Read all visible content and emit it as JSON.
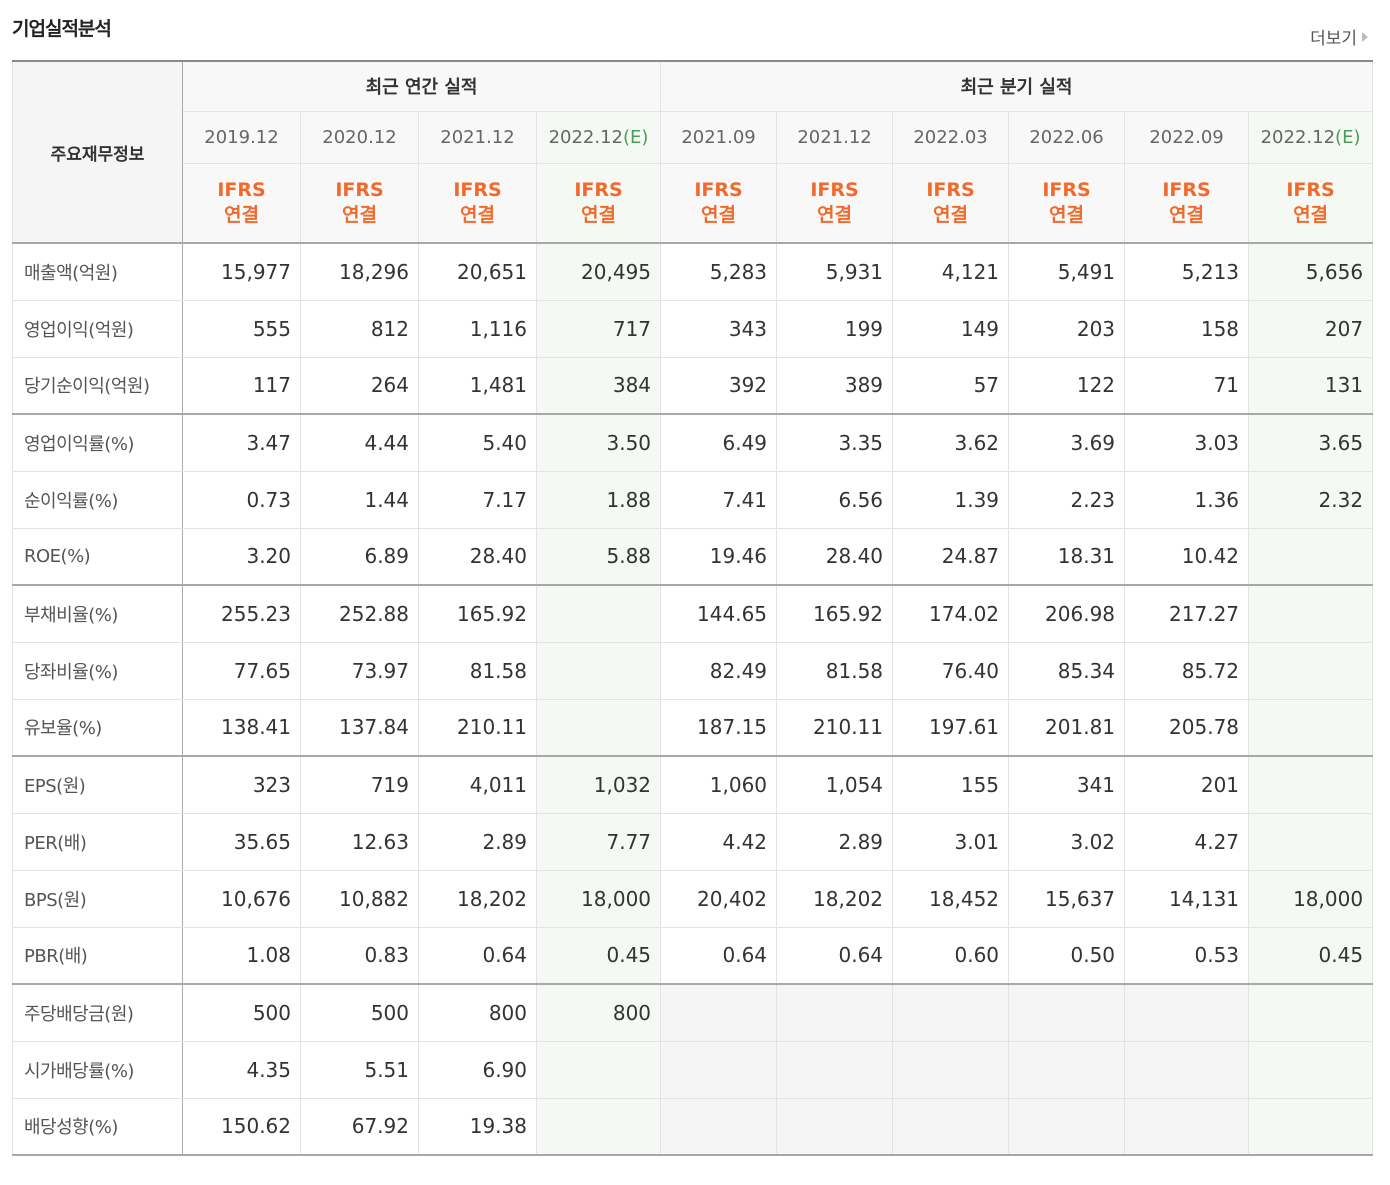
{
  "header": {
    "title": "기업실적분석",
    "more": "더보기"
  },
  "table": {
    "label_header": "주요재무정보",
    "groups": [
      {
        "label": "최근 연간 실적",
        "count": 4
      },
      {
        "label": "최근 분기 실적",
        "count": 6
      }
    ],
    "periods": [
      {
        "date": "2019.12"
      },
      {
        "date": "2020.12"
      },
      {
        "date": "2021.12"
      },
      {
        "date": "2022.12",
        "mark": "(E)"
      },
      {
        "date": "2021.09"
      },
      {
        "date": "2021.12"
      },
      {
        "date": "2022.03"
      },
      {
        "date": "2022.06"
      },
      {
        "date": "2022.09"
      },
      {
        "date": "2022.12",
        "mark": "(E)"
      }
    ],
    "basis": [
      {
        "standard": "IFRS",
        "scope": "연결"
      },
      {
        "standard": "IFRS",
        "scope": "연결"
      },
      {
        "standard": "IFRS",
        "scope": "연결"
      },
      {
        "standard": "IFRS",
        "scope": "연결"
      },
      {
        "standard": "IFRS",
        "scope": "연결"
      },
      {
        "standard": "IFRS",
        "scope": "연결"
      },
      {
        "standard": "IFRS",
        "scope": "연결"
      },
      {
        "standard": "IFRS",
        "scope": "연결"
      },
      {
        "standard": "IFRS",
        "scope": "연결"
      },
      {
        "standard": "IFRS",
        "scope": "연결"
      }
    ],
    "sections": [
      {
        "rows": [
          {
            "label": "매출액(억원)",
            "values": [
              "15,977",
              "18,296",
              "20,651",
              "20,495",
              "5,283",
              "5,931",
              "4,121",
              "5,491",
              "5,213",
              "5,656"
            ]
          },
          {
            "label": "영업이익(억원)",
            "values": [
              "555",
              "812",
              "1,116",
              "717",
              "343",
              "199",
              "149",
              "203",
              "158",
              "207"
            ]
          },
          {
            "label": "당기순이익(억원)",
            "values": [
              "117",
              "264",
              "1,481",
              "384",
              "392",
              "389",
              "57",
              "122",
              "71",
              "131"
            ]
          }
        ]
      },
      {
        "rows": [
          {
            "label": "영업이익률(%)",
            "values": [
              "3.47",
              "4.44",
              "5.40",
              "3.50",
              "6.49",
              "3.35",
              "3.62",
              "3.69",
              "3.03",
              "3.65"
            ]
          },
          {
            "label": "순이익률(%)",
            "values": [
              "0.73",
              "1.44",
              "7.17",
              "1.88",
              "7.41",
              "6.56",
              "1.39",
              "2.23",
              "1.36",
              "2.32"
            ]
          },
          {
            "label": "ROE(%)",
            "values": [
              "3.20",
              "6.89",
              "28.40",
              "5.88",
              "19.46",
              "28.40",
              "24.87",
              "18.31",
              "10.42",
              null
            ]
          }
        ]
      },
      {
        "rows": [
          {
            "label": "부채비율(%)",
            "values": [
              "255.23",
              "252.88",
              "165.92",
              null,
              "144.65",
              "165.92",
              "174.02",
              "206.98",
              "217.27",
              null
            ]
          },
          {
            "label": "당좌비율(%)",
            "values": [
              "77.65",
              "73.97",
              "81.58",
              null,
              "82.49",
              "81.58",
              "76.40",
              "85.34",
              "85.72",
              null
            ]
          },
          {
            "label": "유보율(%)",
            "values": [
              "138.41",
              "137.84",
              "210.11",
              null,
              "187.15",
              "210.11",
              "197.61",
              "201.81",
              "205.78",
              null
            ]
          }
        ]
      },
      {
        "rows": [
          {
            "label": "EPS(원)",
            "values": [
              "323",
              "719",
              "4,011",
              "1,032",
              "1,060",
              "1,054",
              "155",
              "341",
              "201",
              null
            ]
          },
          {
            "label": "PER(배)",
            "values": [
              "35.65",
              "12.63",
              "2.89",
              "7.77",
              "4.42",
              "2.89",
              "3.01",
              "3.02",
              "4.27",
              null
            ]
          },
          {
            "label": "BPS(원)",
            "values": [
              "10,676",
              "10,882",
              "18,202",
              "18,000",
              "20,402",
              "18,202",
              "18,452",
              "15,637",
              "14,131",
              "18,000"
            ]
          },
          {
            "label": "PBR(배)",
            "values": [
              "1.08",
              "0.83",
              "0.64",
              "0.45",
              "0.64",
              "0.64",
              "0.60",
              "0.50",
              "0.53",
              "0.45"
            ]
          }
        ]
      },
      {
        "rows": [
          {
            "label": "주당배당금(원)",
            "values": [
              "500",
              "500",
              "800",
              "800",
              null,
              null,
              null,
              null,
              null,
              null
            ]
          },
          {
            "label": "시가배당률(%)",
            "values": [
              "4.35",
              "5.51",
              "6.90",
              null,
              null,
              null,
              null,
              null,
              null,
              null
            ]
          },
          {
            "label": "배당성향(%)",
            "values": [
              "150.62",
              "67.92",
              "19.38",
              null,
              null,
              null,
              null,
              null,
              null,
              null
            ]
          }
        ]
      }
    ]
  }
}
